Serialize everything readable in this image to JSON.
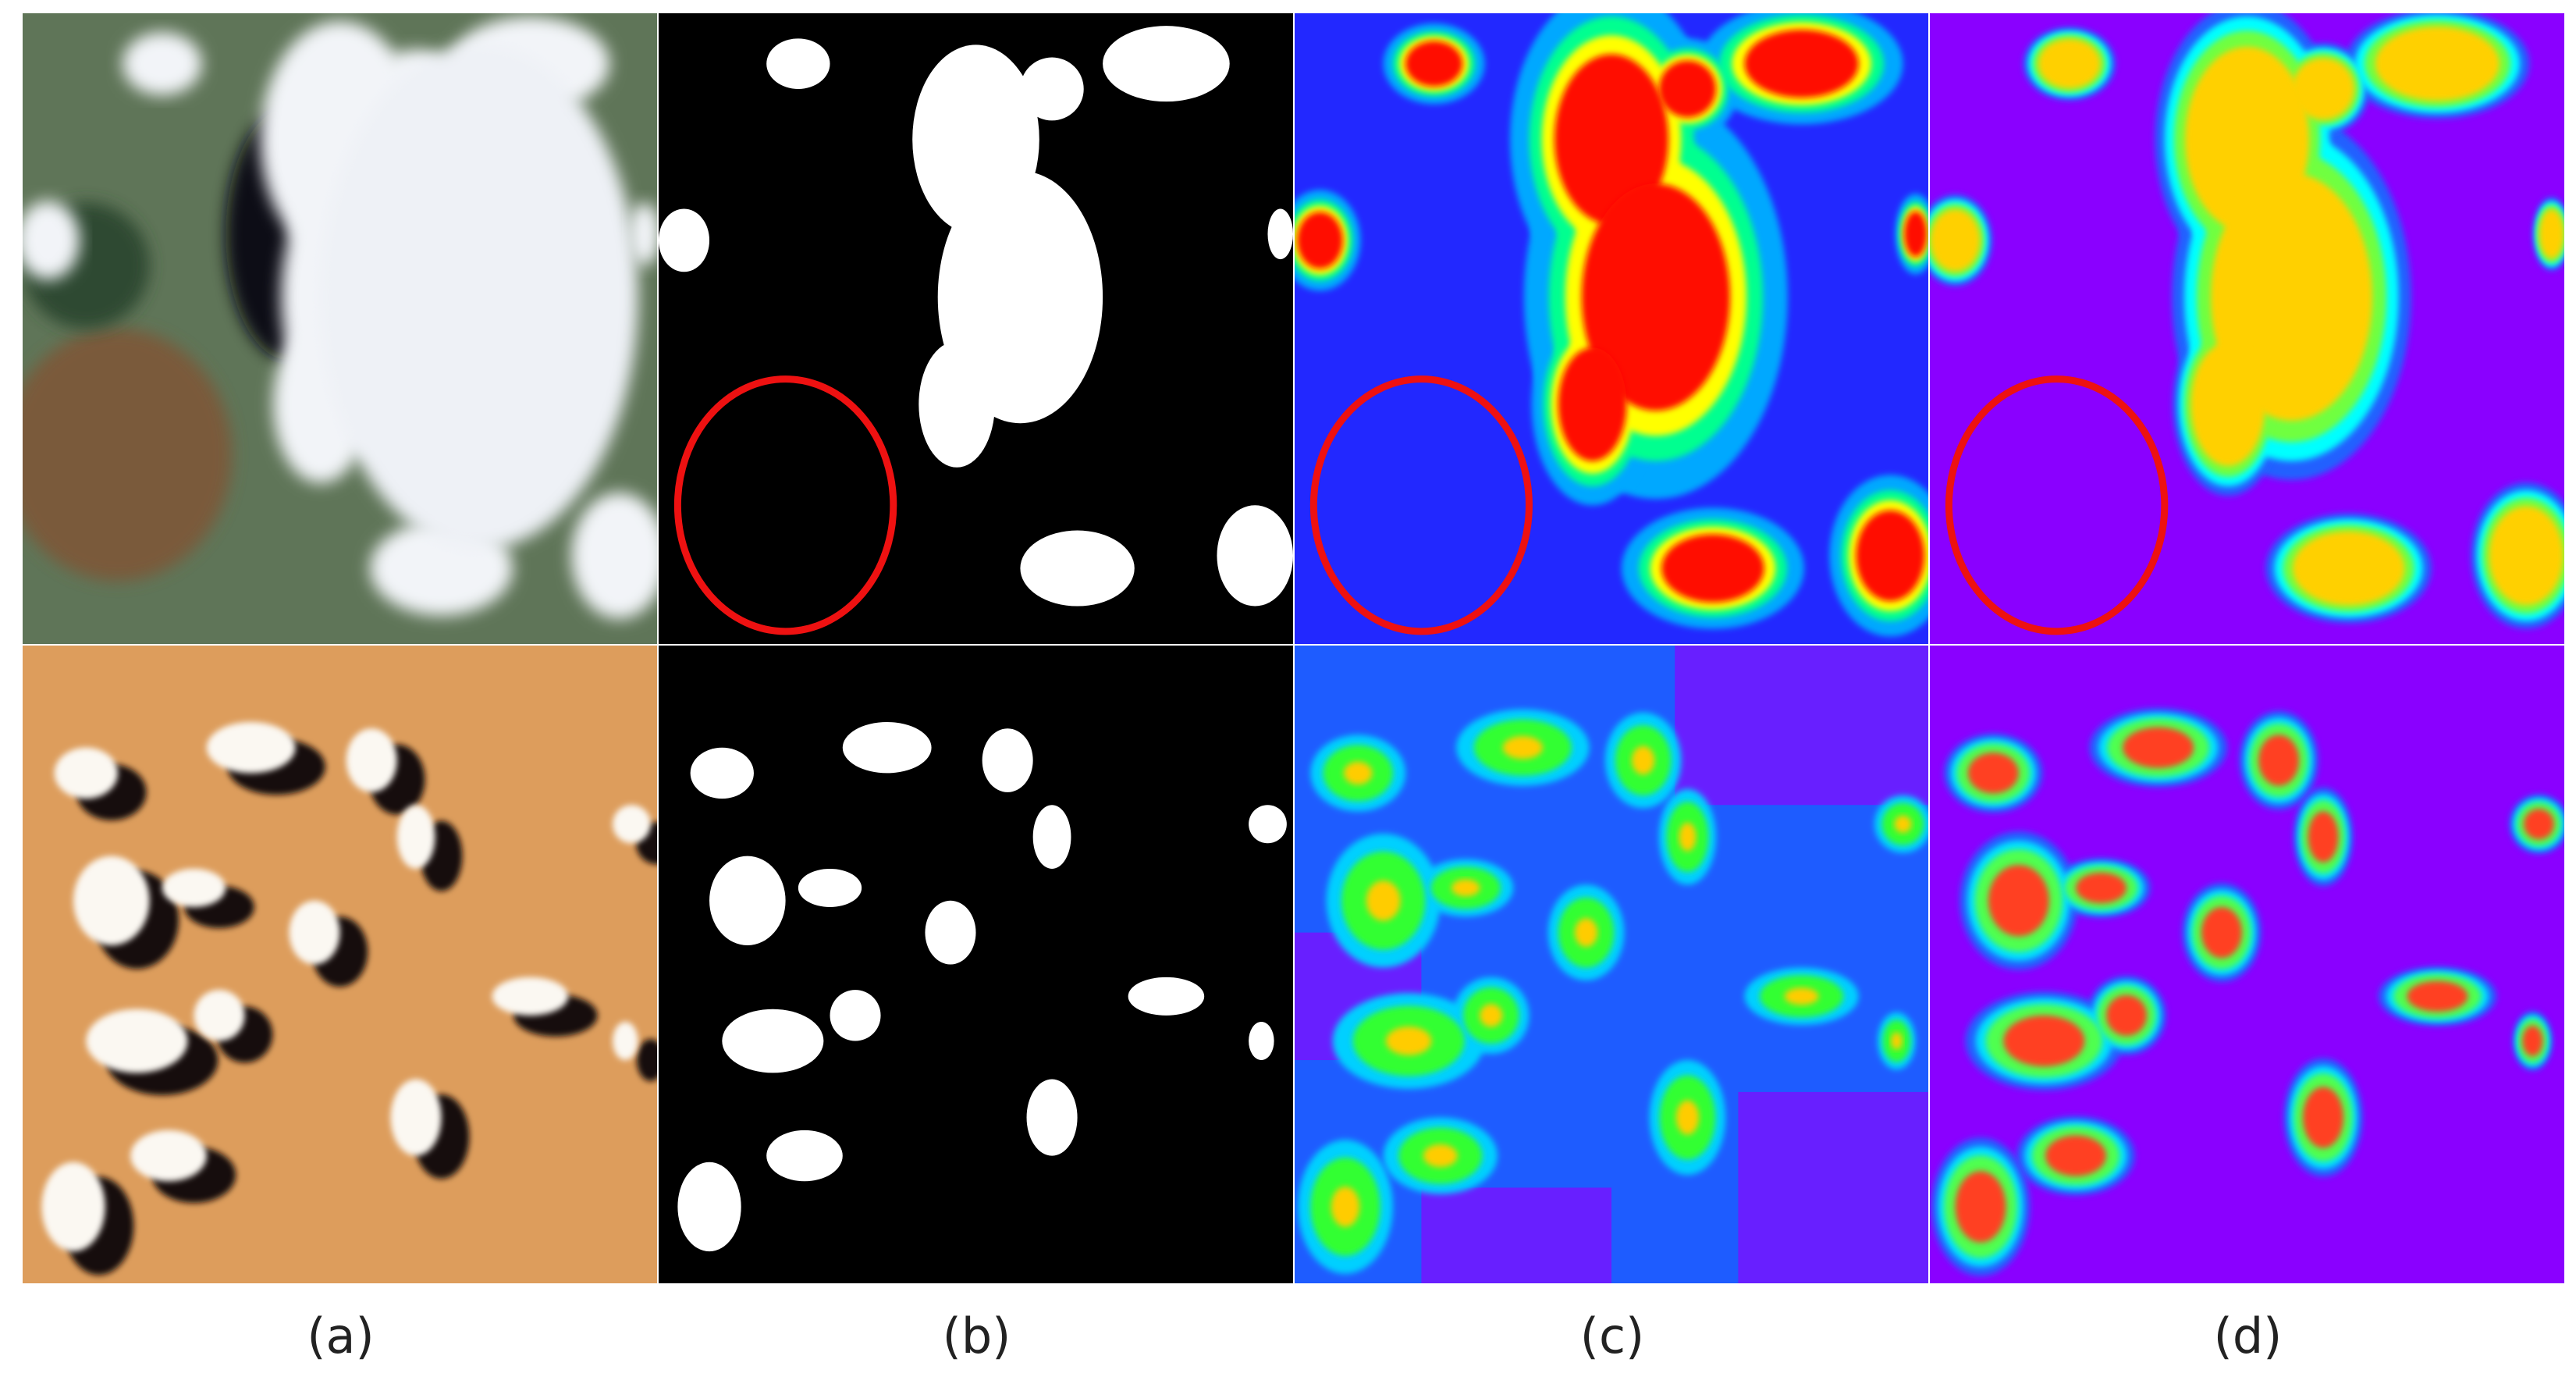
{
  "figure": {
    "labels": [
      "(a)",
      "(b)",
      "(c)",
      "(d)"
    ]
  }
}
